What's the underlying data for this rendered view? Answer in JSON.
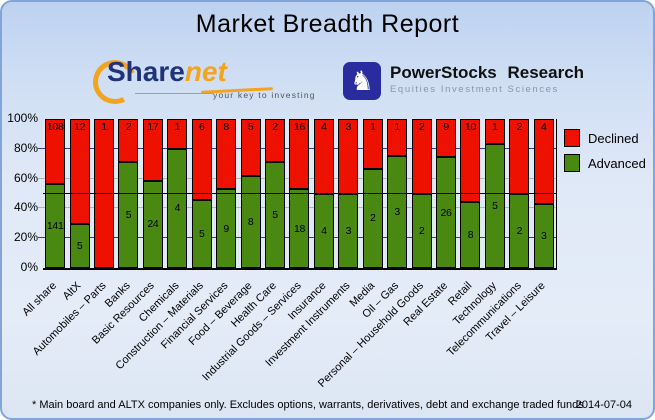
{
  "title": "Market Breadth Report",
  "logos": {
    "sharenet": {
      "text_primary": "Share",
      "text_secondary": "net",
      "tagline": "your key to investing"
    },
    "powerstocks": {
      "name": "PowerStocks Research",
      "subtitle": "Equities Investment Sciences",
      "icon": "knight-chess-icon",
      "icon_glyph": "♞"
    }
  },
  "legend": [
    {
      "label": "Declined",
      "color": "#ee1100"
    },
    {
      "label": "Advanced",
      "color": "#4a8911"
    }
  ],
  "footer": {
    "note": "* Main board and ALTX companies only. Excludes options, warrants, derivatives, debt and exchange traded funds",
    "date": "2014-07-04"
  },
  "colors": {
    "declined": "#ee1100",
    "advanced": "#4a8911",
    "grid_major": "#3c3c8f",
    "grid_minor": "#b3b3b3",
    "midline": "#000000",
    "card_border": "#7fa5db",
    "logo_blue": "#2b2ba0",
    "logo_navy": "#20337a",
    "logo_orange": "#f2a41f"
  },
  "chart_data": {
    "type": "bar",
    "stacked": true,
    "normalized": "percent",
    "title": "Market Breadth Report",
    "xlabel": "",
    "ylabel": "",
    "ylim": [
      0,
      100
    ],
    "y_ticks": [
      "0%",
      "20%",
      "40%",
      "60%",
      "80%",
      "100%"
    ],
    "gridlines": [
      {
        "percent": 20,
        "style": "major"
      },
      {
        "percent": 40,
        "style": "minor"
      },
      {
        "percent": 60,
        "style": "minor"
      },
      {
        "percent": 80,
        "style": "major"
      }
    ],
    "midline_percent": 50,
    "legend_position": "right",
    "categories": [
      "All share",
      "AltX",
      "Automobiles – Parts",
      "Banks",
      "Basic Resources",
      "Chemicals",
      "Construction – Materials",
      "Financial Services",
      "Food – Beverage",
      "Health Care",
      "Industrial Goods – Services",
      "Insurance",
      "Investment Instruments",
      "Media",
      "Oil – Gas",
      "Personal – Household Goods",
      "Real Estate",
      "Retail",
      "Technology",
      "Telecommunications",
      "Travel – Leisure"
    ],
    "series": [
      {
        "name": "Declined",
        "color": "#ee1100",
        "values": [
          108,
          12,
          1,
          2,
          17,
          1,
          6,
          8,
          5,
          2,
          16,
          4,
          3,
          1,
          1,
          2,
          9,
          10,
          1,
          2,
          4
        ]
      },
      {
        "name": "Advanced",
        "color": "#4a8911",
        "values": [
          141,
          5,
          0,
          5,
          24,
          4,
          5,
          9,
          8,
          5,
          18,
          4,
          3,
          2,
          3,
          2,
          26,
          8,
          5,
          2,
          3
        ]
      }
    ]
  }
}
